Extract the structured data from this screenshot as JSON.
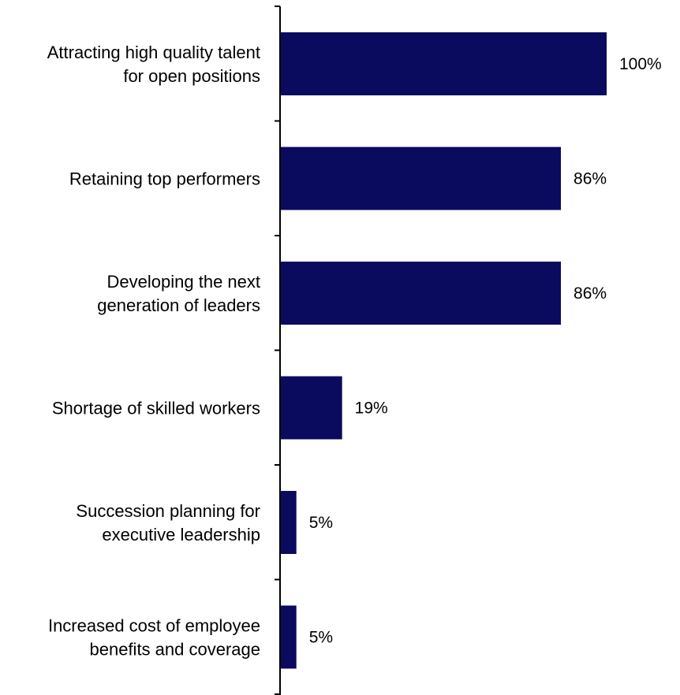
{
  "chart_data": {
    "type": "bar",
    "orientation": "horizontal",
    "categories": [
      [
        "Attracting high quality talent",
        "for open positions"
      ],
      [
        "Retaining top performers"
      ],
      [
        "Developing the next",
        "generation of leaders"
      ],
      [
        "Shortage of skilled workers"
      ],
      [
        "Succession planning for",
        "executive leadership"
      ],
      [
        "Increased cost of employee",
        "benefits and coverage"
      ]
    ],
    "values": [
      100,
      86,
      86,
      19,
      5,
      5
    ],
    "value_labels": [
      "100%",
      "86%",
      "86%",
      "19%",
      "5%",
      "5%"
    ],
    "xlim": [
      0,
      100
    ],
    "bar_color": "#0a0a5e",
    "axis_color": "#000000",
    "grid": false,
    "legend": "none"
  }
}
